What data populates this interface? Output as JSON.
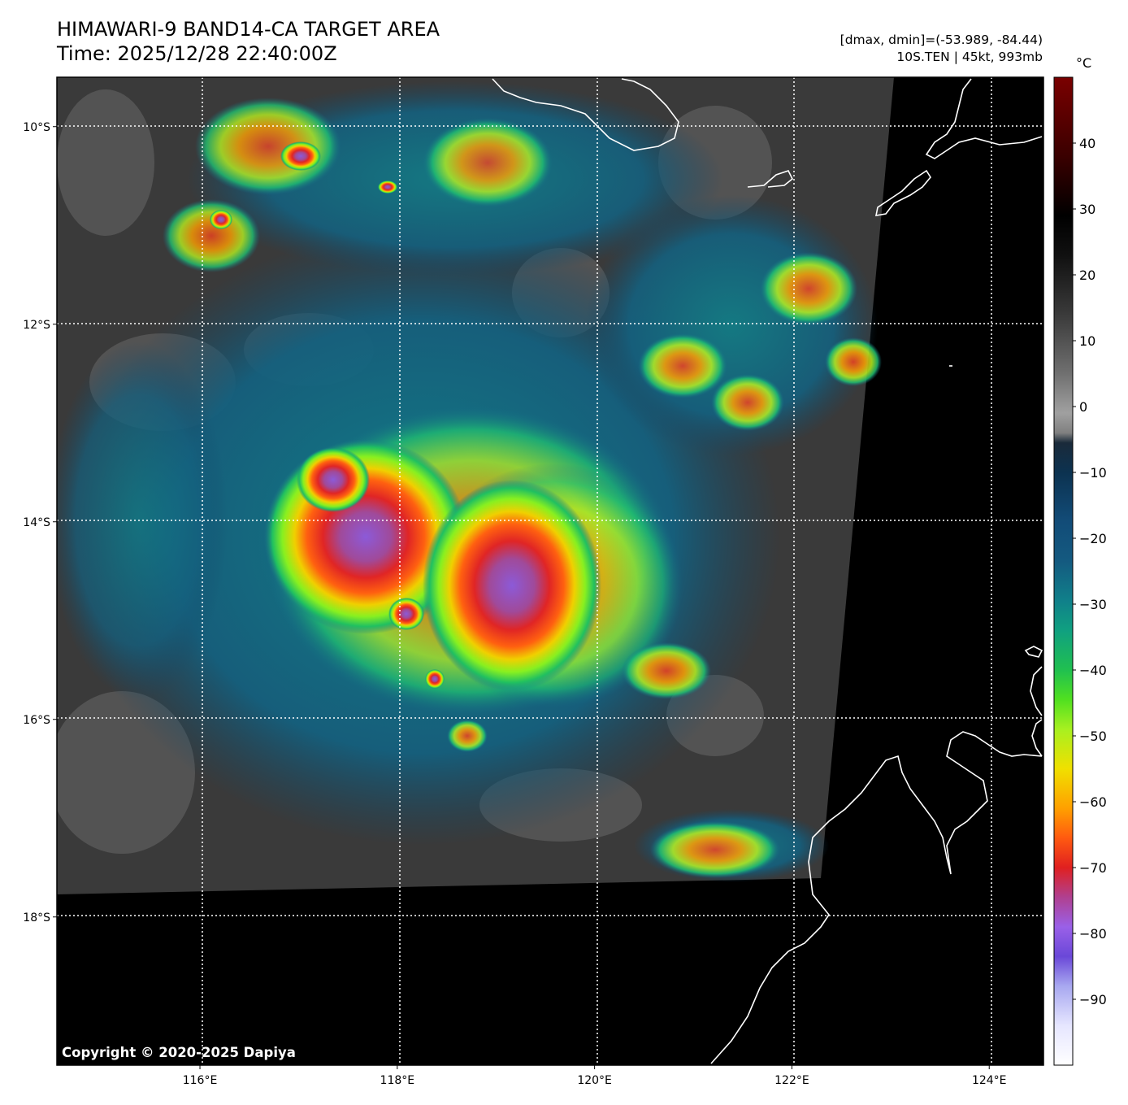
{
  "title": {
    "line1": "HIMAWARI-9 BAND14-CA TARGET AREA",
    "line2": "Time: 2025/12/28 22:40:00Z"
  },
  "info": {
    "line1": "[dmax, dmin]=(-53.989, -84.44)",
    "line2": "10S.TEN | 45kt, 993mb"
  },
  "map": {
    "lon_range": [
      114.55,
      124.55
    ],
    "lat_range": [
      -19.5,
      -9.5
    ],
    "lon_ticks": [
      116,
      118,
      120,
      122,
      124
    ],
    "lat_ticks": [
      -10,
      -12,
      -14,
      -16,
      -18
    ],
    "lon_labels": [
      "116°E",
      "118°E",
      "120°E",
      "122°E",
      "124°E"
    ],
    "lat_labels": [
      "10°S",
      "12°S",
      "14°S",
      "16°S",
      "18°S"
    ]
  },
  "colorbar": {
    "unit": "°C",
    "range": [
      -100,
      50
    ],
    "tick_values": [
      40,
      30,
      20,
      10,
      0,
      -10,
      -20,
      -30,
      -40,
      -50,
      -60,
      -70,
      -80,
      -90
    ],
    "tick_labels": [
      "40",
      "30",
      "20",
      "10",
      "0",
      "−10",
      "−20",
      "−30",
      "−40",
      "−50",
      "−60",
      "−70",
      "−80",
      "−90"
    ]
  },
  "copyright": "Copyright © 2020-2025 Dapiya"
}
